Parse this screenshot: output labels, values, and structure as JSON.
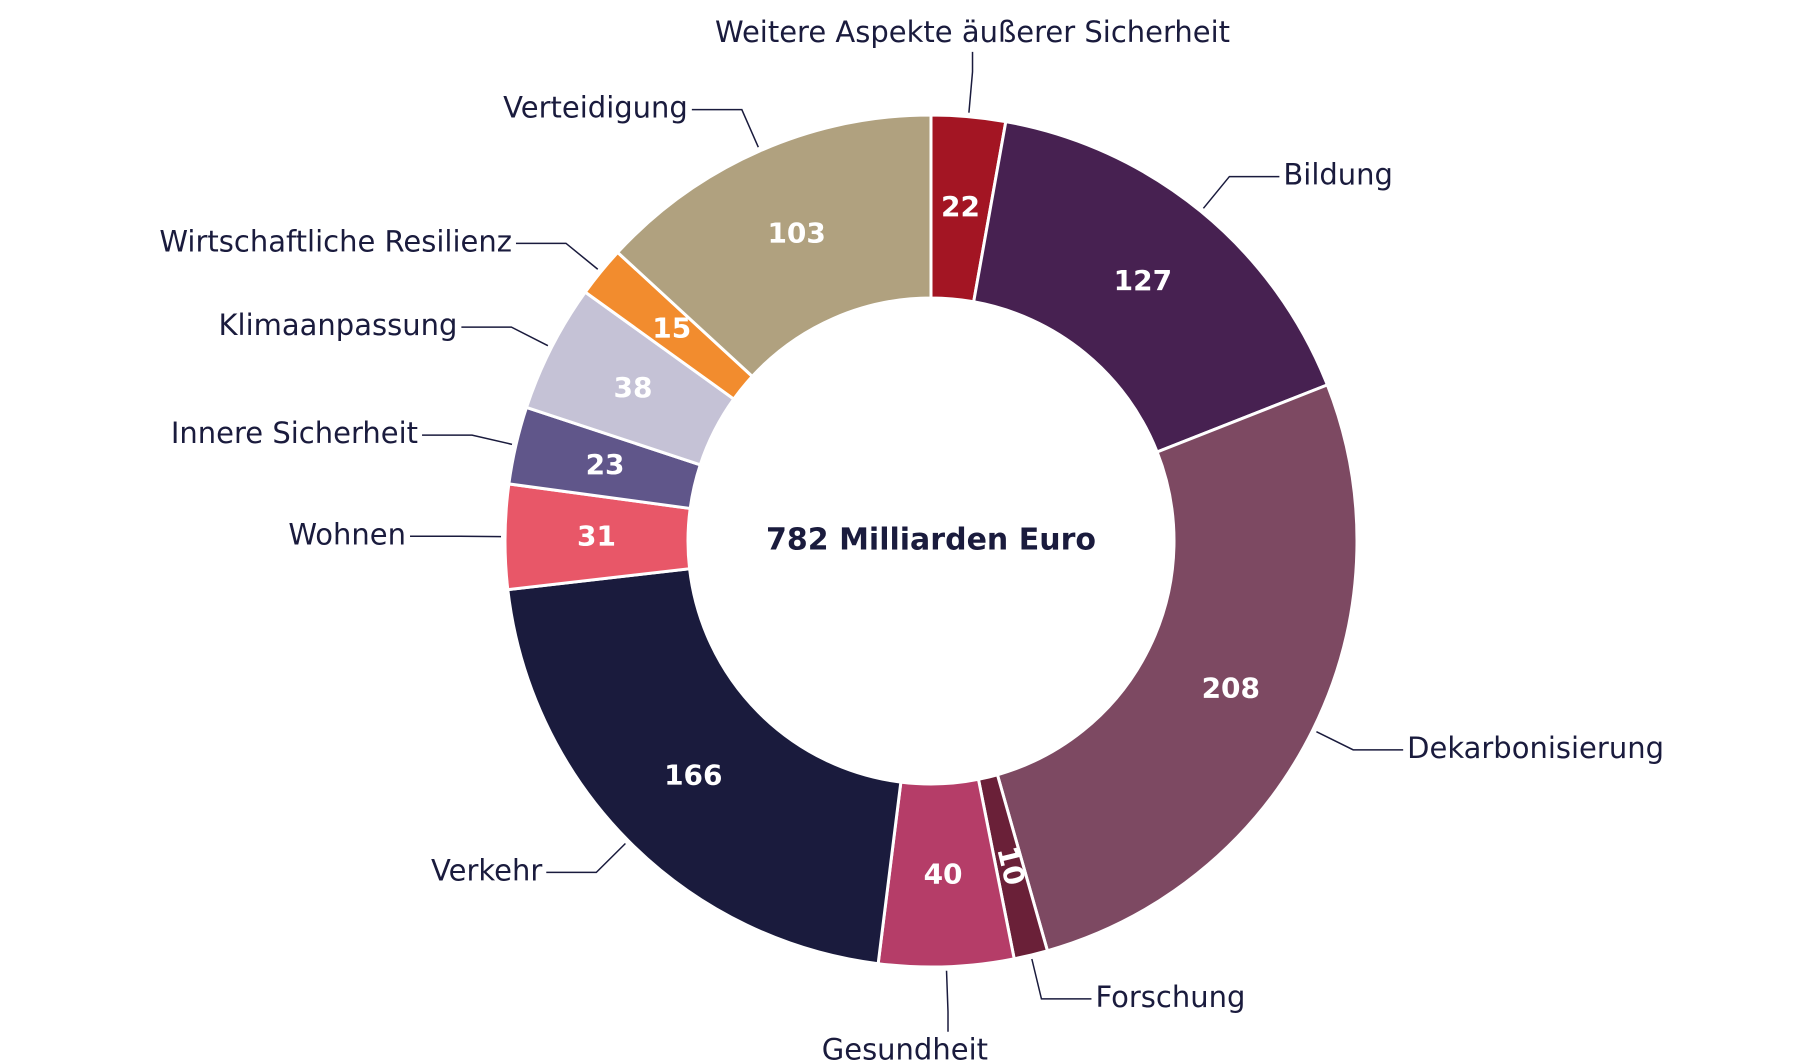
{
  "chart_data": {
    "type": "donut",
    "center_label": "782 Milliarden Euro",
    "categories": [
      "Weitere Aspekte äußerer Sicherheit",
      "Bildung",
      "Dekarbonisierung",
      "Forschung",
      "Gesundheit",
      "Verkehr",
      "Wohnen",
      "Innere Sicherheit",
      "Klimaanpassung",
      "Wirtschaftliche Resilienz",
      "Verteidigung"
    ],
    "values": [
      22,
      127,
      208,
      10,
      40,
      166,
      31,
      23,
      38,
      15,
      103
    ],
    "colors": [
      "#a31523",
      "#472151",
      "#7d4962",
      "#6a2038",
      "#b53d68",
      "#1a1b3d",
      "#e85768",
      "#60568a",
      "#c5c2d6",
      "#f28c2e",
      "#b0a17f"
    ]
  }
}
